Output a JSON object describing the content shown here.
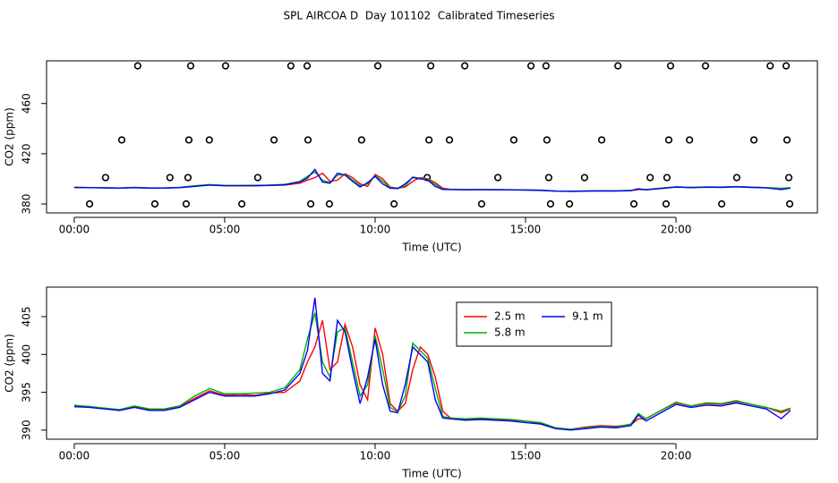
{
  "title": "SPL AIRCOA D  Day 101102  Calibrated Timeseries",
  "chart_data": [
    {
      "type": "line",
      "xlabel": "Time (UTC)",
      "ylabel": "CO2 (ppm)",
      "xlim": [
        -0.92,
        24.7
      ],
      "ylim": [
        372.9,
        494
      ],
      "xticks": [
        {
          "value": 0,
          "label": "00:00"
        },
        {
          "value": 5,
          "label": "05:00"
        },
        {
          "value": 10,
          "label": "10:00"
        },
        {
          "value": 15,
          "label": "15:00"
        },
        {
          "value": 20,
          "label": "20:00"
        }
      ],
      "yticks": [
        380,
        420,
        460
      ],
      "x": [
        0,
        0.5,
        1,
        1.5,
        2,
        2.5,
        3,
        3.5,
        4,
        4.5,
        5,
        5.5,
        6,
        6.5,
        7,
        7.5,
        7.75,
        8,
        8.25,
        8.5,
        8.75,
        9,
        9.25,
        9.5,
        9.75,
        10,
        10.25,
        10.5,
        10.75,
        11,
        11.25,
        11.5,
        11.75,
        12,
        12.25,
        12.5,
        13,
        13.5,
        14,
        14.5,
        15,
        15.5,
        16,
        16.5,
        17,
        17.5,
        18,
        18.5,
        18.75,
        19,
        19.5,
        20,
        20.5,
        21,
        21.5,
        22,
        22.5,
        23,
        23.5,
        23.8
      ],
      "series": [
        {
          "color": "#ff0000",
          "values": [
            393.2,
            393.1,
            392.9,
            392.7,
            393.1,
            392.7,
            392.7,
            393.1,
            394.2,
            395.2,
            394.6,
            394.7,
            394.6,
            394.9,
            395.0,
            396.5,
            399.0,
            401.0,
            404.5,
            398.0,
            399.0,
            404.0,
            401.0,
            396.0,
            394.0,
            403.5,
            400.0,
            393.5,
            392.5,
            393.5,
            398.0,
            401.0,
            400.0,
            397.0,
            392.5,
            391.6,
            391.4,
            391.5,
            391.4,
            391.3,
            391.2,
            390.9,
            390.3,
            390.1,
            390.4,
            390.6,
            390.5,
            390.7,
            391.5,
            391.5,
            392.6,
            393.6,
            393.2,
            393.5,
            393.4,
            393.8,
            393.4,
            393.0,
            392.3,
            392.8
          ]
        },
        {
          "color": "#00b000",
          "values": [
            393.3,
            393.1,
            392.9,
            392.7,
            393.2,
            392.8,
            392.8,
            393.2,
            394.5,
            395.5,
            394.8,
            394.8,
            394.9,
            395.0,
            395.6,
            398.0,
            402.0,
            405.5,
            399.0,
            397.0,
            403.0,
            403.5,
            399.0,
            394.5,
            396.0,
            402.5,
            398.0,
            393.0,
            392.4,
            394.5,
            401.5,
            400.5,
            399.5,
            395.5,
            391.8,
            391.6,
            391.5,
            391.6,
            391.5,
            391.4,
            391.2,
            391.0,
            390.3,
            390.1,
            390.3,
            390.5,
            390.4,
            390.8,
            392.2,
            391.5,
            392.6,
            393.7,
            393.2,
            393.6,
            393.5,
            393.9,
            393.4,
            393.0,
            392.5,
            392.9
          ]
        },
        {
          "color": "#0000ff",
          "values": [
            393.1,
            393.0,
            392.8,
            392.6,
            393.0,
            392.6,
            392.6,
            393.0,
            394.0,
            395.0,
            394.5,
            394.5,
            394.5,
            394.8,
            395.3,
            397.5,
            400.5,
            407.5,
            397.5,
            396.5,
            404.5,
            403,
            398,
            393.5,
            397,
            402,
            396,
            392.5,
            392.3,
            396,
            401,
            400,
            399,
            394,
            391.6,
            391.5,
            391.3,
            391.4,
            391.3,
            391.2,
            391.0,
            390.8,
            390.2,
            390.0,
            390.2,
            390.4,
            390.3,
            390.6,
            392.0,
            391.2,
            392.3,
            393.4,
            393.0,
            393.3,
            393.2,
            393.6,
            393.2,
            392.8,
            391.5,
            392.6
          ]
        }
      ],
      "points": {
        "color": "#000000",
        "x": [
          2.11,
          3.87,
          5.03,
          7.2,
          7.74,
          10.09,
          11.85,
          12.98,
          15.18,
          15.68,
          18.07,
          19.82,
          20.98,
          23.13,
          23.66,
          1.58,
          3.81,
          4.49,
          6.64,
          7.77,
          9.55,
          11.79,
          12.47,
          14.61,
          15.71,
          17.53,
          19.76,
          20.45,
          22.59,
          23.69,
          1.04,
          3.18,
          3.78,
          6.1,
          11.73,
          14.08,
          15.77,
          16.96,
          19.14,
          19.7,
          22.02,
          23.75,
          0.51,
          2.68,
          3.72,
          5.57,
          7.86,
          8.48,
          10.63,
          13.54,
          15.83,
          16.46,
          18.6,
          19.67,
          21.52,
          23.78
        ],
        "y": [
          490,
          490,
          490,
          490,
          490,
          490,
          490,
          490,
          490,
          490,
          490,
          490,
          490,
          490,
          490,
          431,
          431,
          431,
          431,
          431,
          431,
          431,
          431,
          431,
          431,
          431,
          431,
          431,
          431,
          431,
          401,
          401,
          401,
          401,
          401,
          401,
          401,
          401,
          401,
          401,
          401,
          401,
          380,
          380,
          380,
          380,
          380,
          380,
          380,
          380,
          380,
          380,
          380,
          380,
          380,
          380
        ]
      }
    },
    {
      "type": "line",
      "xlabel": "Time (UTC)",
      "ylabel": "CO2 (ppm)",
      "xlim": [
        -0.92,
        24.7
      ],
      "ylim": [
        388.8,
        408.9
      ],
      "xticks": [
        {
          "value": 0,
          "label": "00:00"
        },
        {
          "value": 5,
          "label": "05:00"
        },
        {
          "value": 10,
          "label": "10:00"
        },
        {
          "value": 15,
          "label": "15:00"
        },
        {
          "value": 20,
          "label": "20:00"
        }
      ],
      "yticks": [
        390,
        395,
        400,
        405
      ],
      "legend": "top-center",
      "x": [
        0,
        0.5,
        1,
        1.5,
        2,
        2.5,
        3,
        3.5,
        4,
        4.5,
        5,
        5.5,
        6,
        6.5,
        7,
        7.5,
        7.75,
        8,
        8.25,
        8.5,
        8.75,
        9,
        9.25,
        9.5,
        9.75,
        10,
        10.25,
        10.5,
        10.75,
        11,
        11.25,
        11.5,
        11.75,
        12,
        12.25,
        12.5,
        13,
        13.5,
        14,
        14.5,
        15,
        15.5,
        16,
        16.5,
        17,
        17.5,
        18,
        18.5,
        18.75,
        19,
        19.5,
        20,
        20.5,
        21,
        21.5,
        22,
        22.5,
        23,
        23.5,
        23.8
      ],
      "series": [
        {
          "name": "2.5 m",
          "color": "#ff0000",
          "values": [
            393.2,
            393.1,
            392.9,
            392.7,
            393.1,
            392.7,
            392.7,
            393.1,
            394.2,
            395.2,
            394.6,
            394.7,
            394.6,
            394.9,
            395.0,
            396.5,
            399.0,
            401.0,
            404.5,
            398.0,
            399.0,
            404.0,
            401.0,
            396.0,
            394.0,
            403.5,
            400.0,
            393.5,
            392.5,
            393.5,
            398.0,
            401.0,
            400.0,
            397.0,
            392.5,
            391.6,
            391.4,
            391.5,
            391.4,
            391.3,
            391.2,
            390.9,
            390.3,
            390.1,
            390.4,
            390.6,
            390.5,
            390.7,
            391.5,
            391.5,
            392.6,
            393.6,
            393.2,
            393.5,
            393.4,
            393.8,
            393.4,
            393.0,
            392.3,
            392.8
          ]
        },
        {
          "name": "5.8 m",
          "color": "#00b000",
          "values": [
            393.3,
            393.1,
            392.9,
            392.7,
            393.2,
            392.8,
            392.8,
            393.2,
            394.5,
            395.5,
            394.8,
            394.8,
            394.9,
            395.0,
            395.6,
            398.0,
            402.0,
            405.5,
            399.0,
            397.0,
            403.0,
            403.5,
            399.0,
            394.5,
            396.0,
            402.5,
            398.0,
            393.0,
            392.4,
            394.5,
            401.5,
            400.5,
            399.5,
            395.5,
            391.8,
            391.6,
            391.5,
            391.6,
            391.5,
            391.4,
            391.2,
            391.0,
            390.3,
            390.1,
            390.3,
            390.5,
            390.4,
            390.8,
            392.2,
            391.5,
            392.6,
            393.7,
            393.2,
            393.6,
            393.5,
            393.9,
            393.4,
            393.0,
            392.5,
            392.9
          ]
        },
        {
          "name": "9.1 m",
          "color": "#0000ff",
          "values": [
            393.1,
            393.0,
            392.8,
            392.6,
            393.0,
            392.6,
            392.6,
            393.0,
            394.0,
            395.0,
            394.5,
            394.5,
            394.5,
            394.8,
            395.3,
            397.5,
            400.5,
            407.5,
            397.5,
            396.5,
            404.5,
            403,
            398,
            393.5,
            397,
            402,
            396,
            392.5,
            392.3,
            396,
            401,
            400,
            399,
            394,
            391.6,
            391.5,
            391.3,
            391.4,
            391.3,
            391.2,
            391.0,
            390.8,
            390.2,
            390.0,
            390.2,
            390.4,
            390.3,
            390.6,
            392.0,
            391.2,
            392.3,
            393.4,
            393.0,
            393.3,
            393.2,
            393.6,
            393.2,
            392.8,
            391.5,
            392.6
          ]
        }
      ]
    }
  ]
}
